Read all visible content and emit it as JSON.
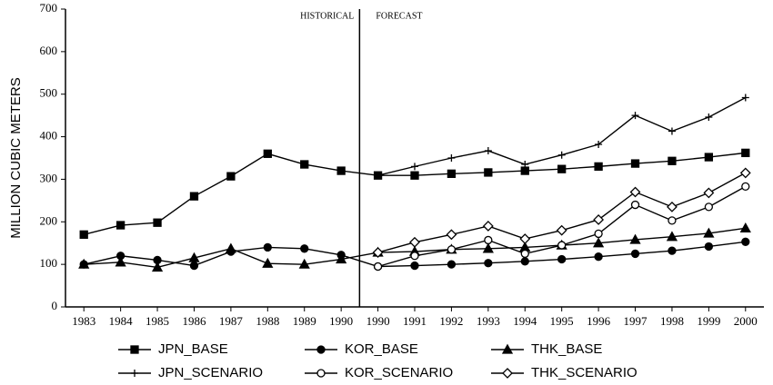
{
  "chart_data": {
    "type": "line",
    "y_label": "MILLION CUBIC METERS",
    "annotations": [
      "HISTORICAL",
      "FORECAST"
    ],
    "categories": [
      "1983",
      "1984",
      "1985",
      "1986",
      "1987",
      "1988",
      "1989",
      "1990",
      "1990",
      "1991",
      "1992",
      "1993",
      "1994",
      "1995",
      "1996",
      "1997",
      "1998",
      "1999",
      "2000"
    ],
    "ylim": [
      0,
      700
    ],
    "yticks": [
      0,
      100,
      200,
      300,
      400,
      500,
      600,
      700
    ],
    "series": [
      {
        "name": "JPN_BASE",
        "color": "#000000",
        "marker": "square-filled",
        "values": [
          170,
          192,
          198,
          260,
          307,
          360,
          335,
          320,
          309,
          309,
          313,
          316,
          320,
          324,
          330,
          337,
          343,
          352,
          362
        ]
      },
      {
        "name": "KOR_BASE",
        "color": "#000000",
        "marker": "circle-filled",
        "values": [
          100,
          120,
          110,
          97,
          130,
          140,
          137,
          122,
          95,
          97,
          100,
          103,
          107,
          112,
          118,
          125,
          132,
          142,
          153
        ]
      },
      {
        "name": "THK_BASE",
        "color": "#000000",
        "marker": "triangle-filled",
        "values": [
          100,
          105,
          93,
          115,
          137,
          102,
          100,
          112,
          128,
          130,
          135,
          137,
          140,
          145,
          150,
          158,
          165,
          173,
          185
        ]
      },
      {
        "name": "JPN_SCENARIO",
        "color": "#000000",
        "marker": "plus",
        "values": [
          null,
          null,
          null,
          null,
          null,
          null,
          null,
          null,
          309,
          330,
          350,
          367,
          335,
          357,
          382,
          450,
          413,
          446,
          492
        ]
      },
      {
        "name": "KOR_SCENARIO",
        "color": "#000000",
        "marker": "circle-open",
        "values": [
          null,
          null,
          null,
          null,
          null,
          null,
          null,
          null,
          95,
          120,
          135,
          157,
          125,
          145,
          172,
          240,
          203,
          235,
          283
        ]
      },
      {
        "name": "THK_SCENARIO",
        "color": "#000000",
        "marker": "diamond-open",
        "values": [
          null,
          null,
          null,
          null,
          null,
          null,
          null,
          null,
          128,
          152,
          170,
          190,
          160,
          180,
          205,
          270,
          235,
          268,
          315
        ]
      }
    ]
  }
}
